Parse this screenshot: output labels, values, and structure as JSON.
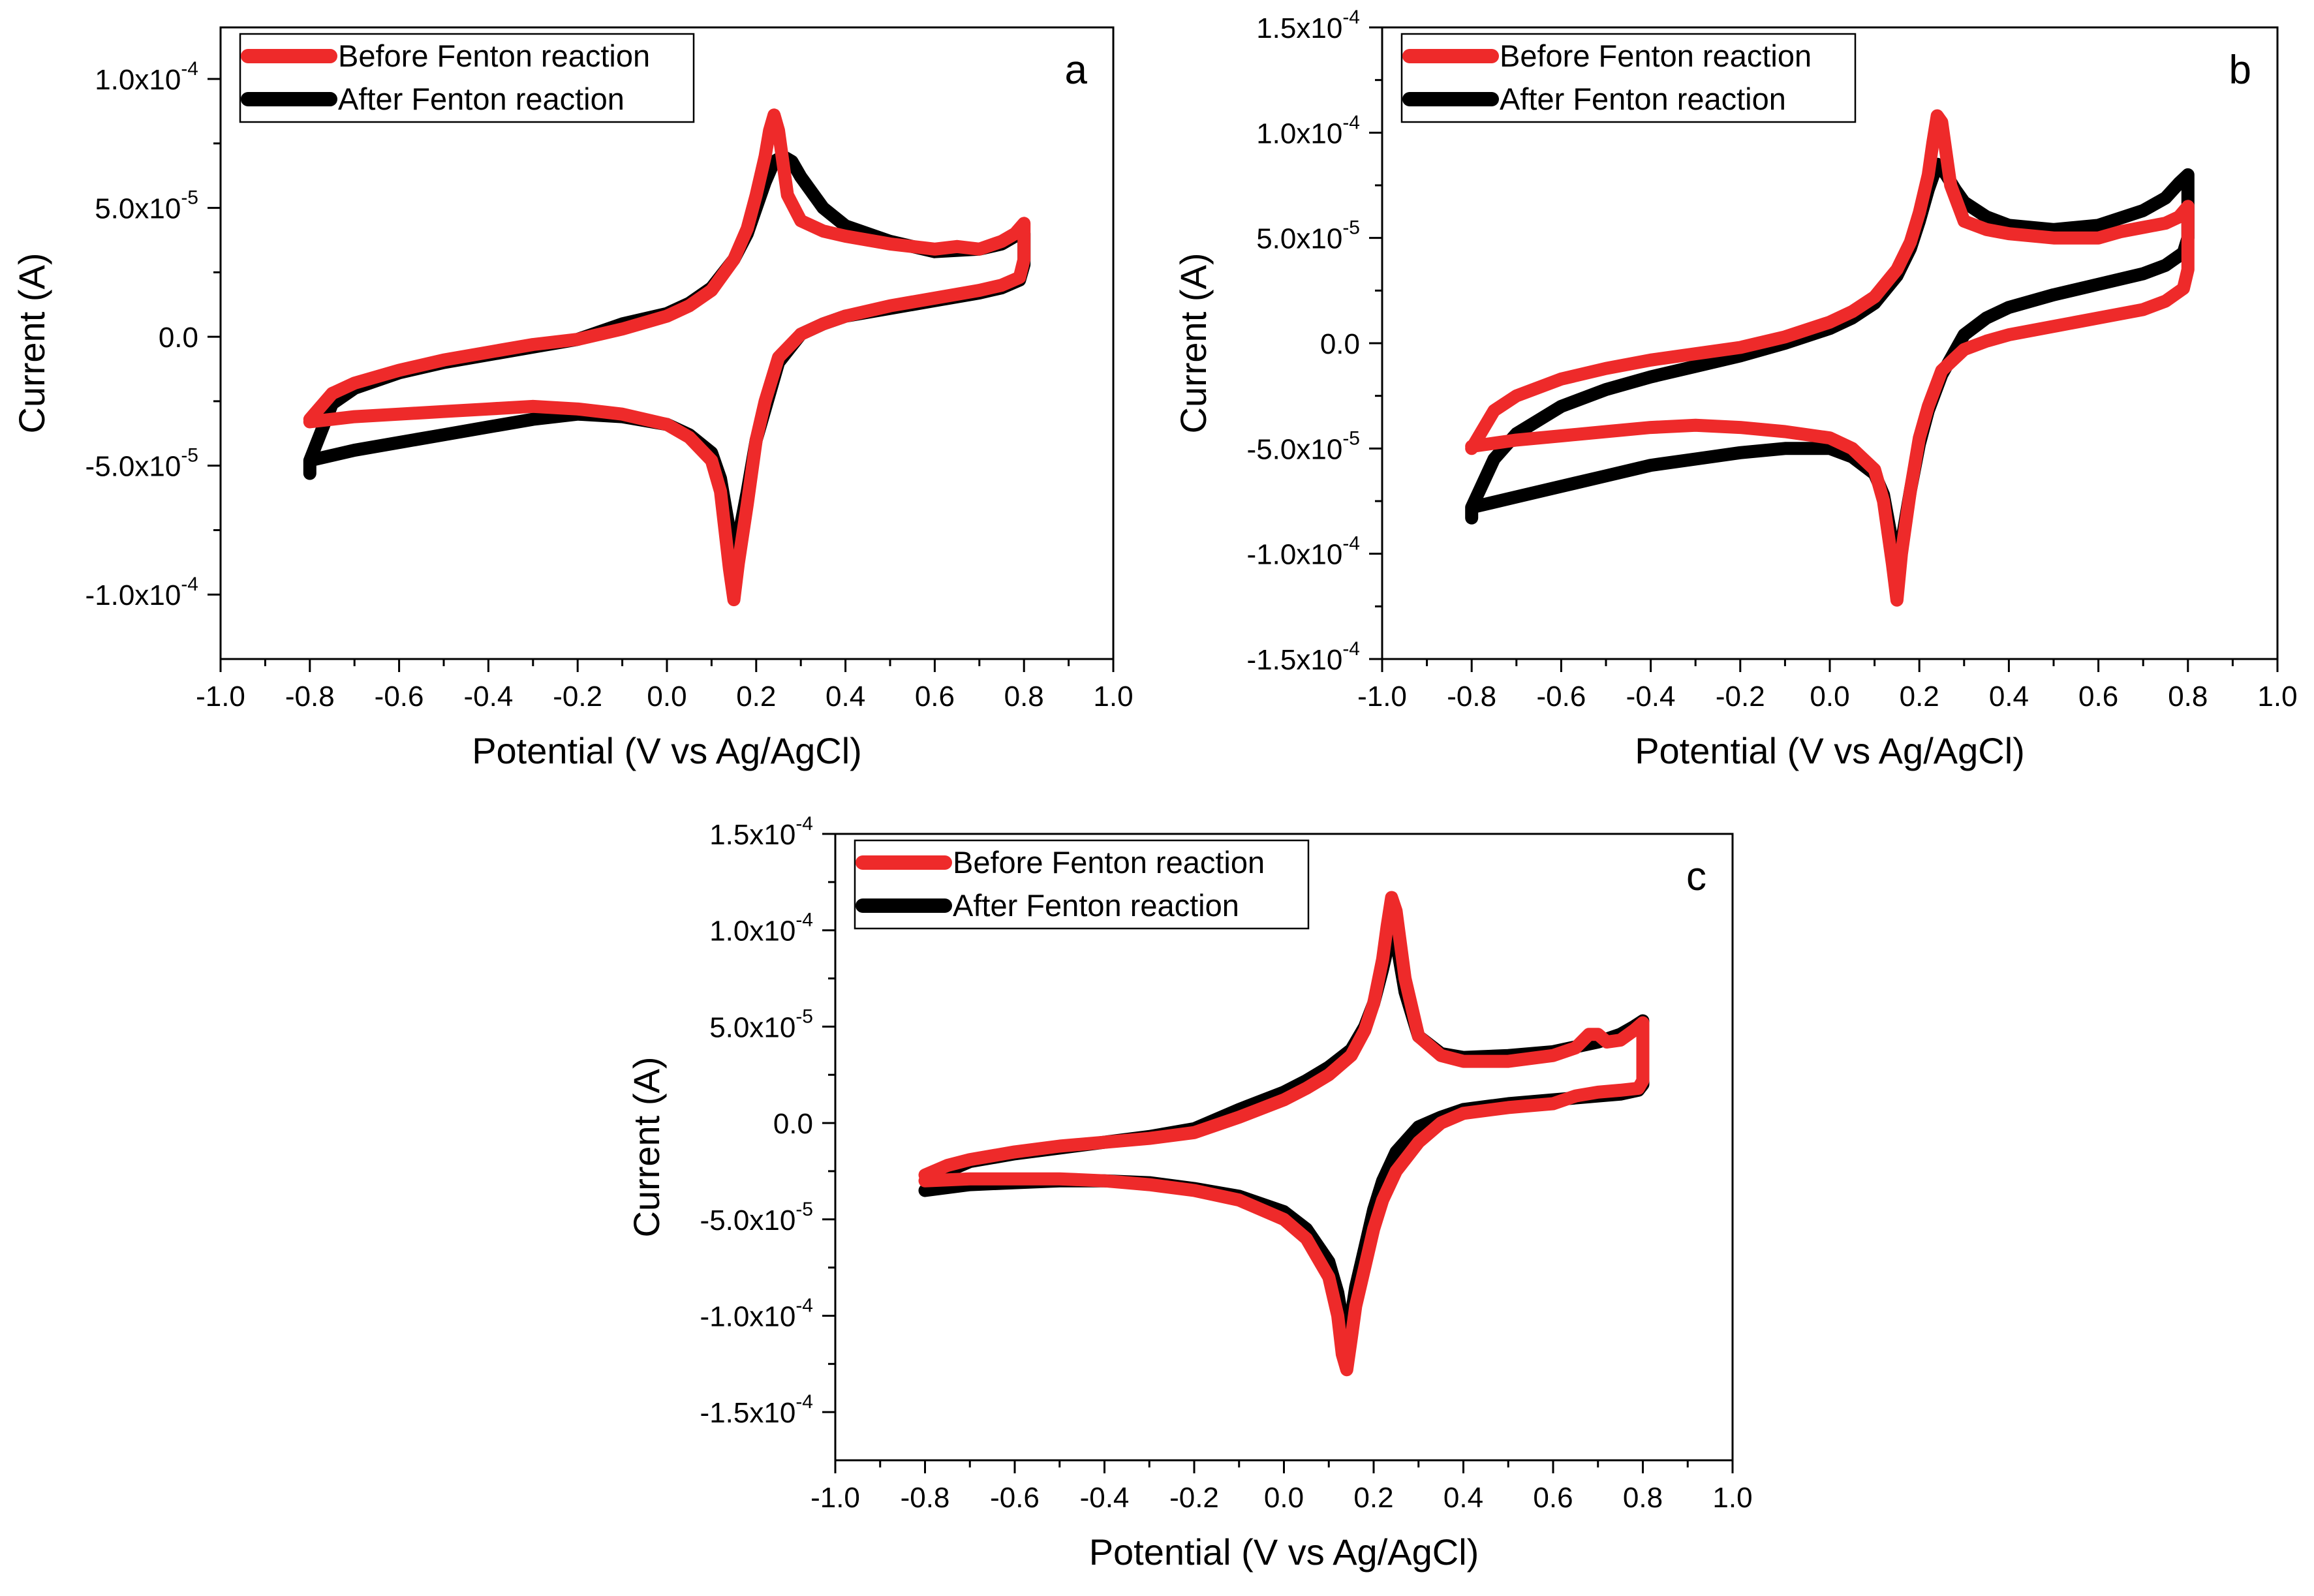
{
  "colors": {
    "before": "#ee2a2a",
    "after": "#000000"
  },
  "chart_data": [
    {
      "type": "line",
      "panel_label": "a",
      "xlabel": "Potential (V vs Ag/AgCl)",
      "ylabel": "Current (A)",
      "xlim": [
        -1.0,
        1.0
      ],
      "ylim": [
        -0.000125,
        0.00012
      ],
      "xticks": [
        -1.0,
        -0.8,
        -0.6,
        -0.4,
        -0.2,
        0.0,
        0.2,
        0.4,
        0.6,
        0.8,
        1.0
      ],
      "xtick_labels": [
        "-1.0",
        "-0.8",
        "-0.6",
        "-0.4",
        "-0.2",
        "0.0",
        "0.2",
        "0.4",
        "0.6",
        "0.8",
        "1.0"
      ],
      "yticks": [
        -0.0001,
        -5e-05,
        0.0,
        5e-05,
        0.0001
      ],
      "ytick_labels": [
        {
          "base": "-1.0x10",
          "exp": "-4"
        },
        {
          "base": "-5.0x10",
          "exp": "-5"
        },
        {
          "base": "0.0",
          "exp": ""
        },
        {
          "base": "5.0x10",
          "exp": "-5"
        },
        {
          "base": "1.0x10",
          "exp": "-4"
        }
      ],
      "legend_position": "top-left",
      "series": [
        {
          "name": "Before Fenton reaction",
          "color": "#ee2a2a",
          "x": [
            -0.8,
            -0.75,
            -0.7,
            -0.6,
            -0.5,
            -0.4,
            -0.3,
            -0.2,
            -0.1,
            0.0,
            0.05,
            0.1,
            0.15,
            0.18,
            0.2,
            0.22,
            0.23,
            0.24,
            0.25,
            0.27,
            0.3,
            0.35,
            0.4,
            0.5,
            0.6,
            0.65,
            0.7,
            0.75,
            0.78,
            0.8,
            0.8,
            0.79,
            0.75,
            0.7,
            0.6,
            0.5,
            0.4,
            0.35,
            0.3,
            0.25,
            0.22,
            0.2,
            0.18,
            0.16,
            0.15,
            0.14,
            0.12,
            0.1,
            0.05,
            0.0,
            -0.1,
            -0.2,
            -0.3,
            -0.4,
            -0.5,
            -0.6,
            -0.7,
            -0.8
          ],
          "y": [
            -3.2e-05,
            -2.2e-05,
            -1.8e-05,
            -1.3e-05,
            -9e-06,
            -6e-06,
            -3e-06,
            -1e-06,
            3e-06,
            8e-06,
            1.2e-05,
            1.8e-05,
            3e-05,
            4.2e-05,
            5.5e-05,
            7e-05,
            8e-05,
            8.6e-05,
            8e-05,
            5.5e-05,
            4.5e-05,
            4.1e-05,
            3.9e-05,
            3.6e-05,
            3.4e-05,
            3.5e-05,
            3.4e-05,
            3.7e-05,
            4e-05,
            4.4e-05,
            3e-05,
            2.3e-05,
            2e-05,
            1.8e-05,
            1.5e-05,
            1.2e-05,
            8e-06,
            5e-06,
            1e-06,
            -8e-06,
            -2.5e-05,
            -4e-05,
            -6.5e-05,
            -8.8e-05,
            -0.000102,
            -9e-05,
            -6e-05,
            -4.8e-05,
            -3.9e-05,
            -3.4e-05,
            -3e-05,
            -2.8e-05,
            -2.7e-05,
            -2.8e-05,
            -2.9e-05,
            -3e-05,
            -3.1e-05,
            -3.3e-05
          ]
        },
        {
          "name": "After Fenton reaction",
          "color": "#000000",
          "x": [
            -0.8,
            -0.75,
            -0.7,
            -0.6,
            -0.5,
            -0.4,
            -0.3,
            -0.2,
            -0.1,
            0.0,
            0.05,
            0.1,
            0.15,
            0.18,
            0.2,
            0.22,
            0.24,
            0.26,
            0.28,
            0.3,
            0.35,
            0.4,
            0.5,
            0.6,
            0.7,
            0.75,
            0.78,
            0.8,
            0.8,
            0.79,
            0.75,
            0.7,
            0.6,
            0.5,
            0.4,
            0.35,
            0.3,
            0.25,
            0.22,
            0.2,
            0.18,
            0.16,
            0.15,
            0.14,
            0.12,
            0.1,
            0.05,
            0.0,
            -0.1,
            -0.2,
            -0.3,
            -0.4,
            -0.5,
            -0.6,
            -0.7,
            -0.8,
            -0.8
          ],
          "y": [
            -4.8e-05,
            -2.6e-05,
            -2e-05,
            -1.4e-05,
            -1e-05,
            -7e-06,
            -4e-06,
            -1e-06,
            5e-06,
            9e-06,
            1.3e-05,
            1.9e-05,
            3e-05,
            4e-05,
            5e-05,
            6e-05,
            6.8e-05,
            7e-05,
            6.8e-05,
            6.2e-05,
            5e-05,
            4.3e-05,
            3.7e-05,
            3.3e-05,
            3.4e-05,
            3.6e-05,
            3.9e-05,
            4e-05,
            2.8e-05,
            2.2e-05,
            1.9e-05,
            1.7e-05,
            1.4e-05,
            1.1e-05,
            8e-06,
            5e-06,
            1e-06,
            -1e-05,
            -2.8e-05,
            -4e-05,
            -6e-05,
            -7.8e-05,
            -8.4e-05,
            -7.5e-05,
            -5.5e-05,
            -4.5e-05,
            -3.8e-05,
            -3.4e-05,
            -3.1e-05,
            -3e-05,
            -3.2e-05,
            -3.5e-05,
            -3.8e-05,
            -4.1e-05,
            -4.4e-05,
            -4.8e-05,
            -5.3e-05
          ]
        }
      ]
    },
    {
      "type": "line",
      "panel_label": "b",
      "xlabel": "Potential (V vs Ag/AgCl)",
      "ylabel": "Current (A)",
      "xlim": [
        -1.0,
        1.0
      ],
      "ylim": [
        -0.00015,
        0.00015
      ],
      "xticks": [
        -1.0,
        -0.8,
        -0.6,
        -0.4,
        -0.2,
        0.0,
        0.2,
        0.4,
        0.6,
        0.8,
        1.0
      ],
      "xtick_labels": [
        "-1.0",
        "-0.8",
        "-0.6",
        "-0.4",
        "-0.2",
        "0.0",
        "0.2",
        "0.4",
        "0.6",
        "0.8",
        "1.0"
      ],
      "yticks": [
        -0.00015,
        -0.0001,
        -5e-05,
        0.0,
        5e-05,
        0.0001,
        0.00015
      ],
      "ytick_labels": [
        {
          "base": "-1.5x10",
          "exp": "-4"
        },
        {
          "base": "-1.0x10",
          "exp": "-4"
        },
        {
          "base": "-5.0x10",
          "exp": "-5"
        },
        {
          "base": "0.0",
          "exp": ""
        },
        {
          "base": "5.0x10",
          "exp": "-5"
        },
        {
          "base": "1.0x10",
          "exp": "-4"
        },
        {
          "base": "1.5x10",
          "exp": "-4"
        }
      ],
      "legend_position": "top-left",
      "series": [
        {
          "name": "Before Fenton reaction",
          "color": "#ee2a2a",
          "x": [
            -0.8,
            -0.75,
            -0.7,
            -0.6,
            -0.5,
            -0.4,
            -0.3,
            -0.2,
            -0.1,
            0.0,
            0.05,
            0.1,
            0.15,
            0.18,
            0.2,
            0.22,
            0.23,
            0.24,
            0.25,
            0.27,
            0.3,
            0.35,
            0.4,
            0.5,
            0.6,
            0.65,
            0.7,
            0.75,
            0.78,
            0.8,
            0.8,
            0.79,
            0.75,
            0.7,
            0.6,
            0.5,
            0.4,
            0.35,
            0.3,
            0.25,
            0.22,
            0.2,
            0.18,
            0.16,
            0.15,
            0.14,
            0.12,
            0.1,
            0.05,
            0.0,
            -0.1,
            -0.2,
            -0.3,
            -0.4,
            -0.5,
            -0.6,
            -0.7,
            -0.8
          ],
          "y": [
            -5e-05,
            -3.2e-05,
            -2.5e-05,
            -1.7e-05,
            -1.2e-05,
            -8e-06,
            -5e-06,
            -2e-06,
            3e-06,
            1e-05,
            1.5e-05,
            2.2e-05,
            3.5e-05,
            4.8e-05,
            6.2e-05,
            8e-05,
            9.5e-05,
            0.000108,
            0.000105,
            7.5e-05,
            5.8e-05,
            5.4e-05,
            5.2e-05,
            5e-05,
            5e-05,
            5.3e-05,
            5.5e-05,
            5.7e-05,
            6e-05,
            6.5e-05,
            3.5e-05,
            2.6e-05,
            2e-05,
            1.6e-05,
            1.2e-05,
            8e-06,
            4e-06,
            1e-06,
            -3e-06,
            -1.3e-05,
            -3e-05,
            -4.5e-05,
            -7e-05,
            -0.0001,
            -0.000122,
            -0.000105,
            -7.5e-05,
            -6e-05,
            -5e-05,
            -4.5e-05,
            -4.2e-05,
            -4e-05,
            -3.9e-05,
            -4e-05,
            -4.2e-05,
            -4.4e-05,
            -4.6e-05,
            -4.9e-05
          ]
        },
        {
          "name": "After Fenton reaction",
          "color": "#000000",
          "x": [
            -0.8,
            -0.75,
            -0.7,
            -0.6,
            -0.5,
            -0.4,
            -0.3,
            -0.2,
            -0.1,
            0.0,
            0.05,
            0.1,
            0.15,
            0.18,
            0.2,
            0.22,
            0.24,
            0.26,
            0.28,
            0.3,
            0.35,
            0.4,
            0.5,
            0.6,
            0.7,
            0.75,
            0.78,
            0.8,
            0.8,
            0.79,
            0.75,
            0.7,
            0.6,
            0.5,
            0.4,
            0.35,
            0.3,
            0.25,
            0.22,
            0.2,
            0.18,
            0.16,
            0.15,
            0.14,
            0.12,
            0.1,
            0.05,
            0.0,
            -0.1,
            -0.2,
            -0.3,
            -0.4,
            -0.5,
            -0.6,
            -0.7,
            -0.8,
            -0.8
          ],
          "y": [
            -7.8e-05,
            -5.5e-05,
            -4.3e-05,
            -3e-05,
            -2.2e-05,
            -1.6e-05,
            -1.1e-05,
            -6e-06,
            0,
            7e-06,
            1.2e-05,
            1.9e-05,
            3.2e-05,
            4.5e-05,
            5.8e-05,
            7.3e-05,
            8.5e-05,
            8e-05,
            7.3e-05,
            6.7e-05,
            6e-05,
            5.6e-05,
            5.4e-05,
            5.6e-05,
            6.3e-05,
            6.9e-05,
            7.6e-05,
            8e-05,
            5e-05,
            4.3e-05,
            3.7e-05,
            3.3e-05,
            2.8e-05,
            2.3e-05,
            1.7e-05,
            1.2e-05,
            4e-06,
            -1.5e-05,
            -3.2e-05,
            -4.8e-05,
            -7e-05,
            -9.5e-05,
            -0.000105,
            -9.5e-05,
            -7.2e-05,
            -6.2e-05,
            -5.4e-05,
            -5e-05,
            -5e-05,
            -5.2e-05,
            -5.5e-05,
            -5.8e-05,
            -6.3e-05,
            -6.8e-05,
            -7.3e-05,
            -7.8e-05,
            -8.3e-05
          ]
        }
      ]
    },
    {
      "type": "line",
      "panel_label": "c",
      "xlabel": "Potential (V vs Ag/AgCl)",
      "ylabel": "Current (A)",
      "xlim": [
        -1.0,
        1.0
      ],
      "ylim": [
        -0.000175,
        0.00015
      ],
      "xticks": [
        -1.0,
        -0.8,
        -0.6,
        -0.4,
        -0.2,
        0.0,
        0.2,
        0.4,
        0.6,
        0.8,
        1.0
      ],
      "xtick_labels": [
        "-1.0",
        "-0.8",
        "-0.6",
        "-0.4",
        "-0.2",
        "0.0",
        "0.2",
        "0.4",
        "0.6",
        "0.8",
        "1.0"
      ],
      "yticks": [
        -0.00015,
        -0.0001,
        -5e-05,
        0.0,
        5e-05,
        0.0001,
        0.00015
      ],
      "ytick_labels": [
        {
          "base": "-1.5x10",
          "exp": "-4"
        },
        {
          "base": "-1.0x10",
          "exp": "-4"
        },
        {
          "base": "-5.0x10",
          "exp": "-5"
        },
        {
          "base": "0.0",
          "exp": ""
        },
        {
          "base": "5.0x10",
          "exp": "-5"
        },
        {
          "base": "1.0x10",
          "exp": "-4"
        },
        {
          "base": "1.5x10",
          "exp": "-4"
        }
      ],
      "legend_position": "top-left",
      "series": [
        {
          "name": "Before Fenton reaction",
          "color": "#ee2a2a",
          "x": [
            -0.8,
            -0.75,
            -0.7,
            -0.6,
            -0.5,
            -0.4,
            -0.3,
            -0.2,
            -0.1,
            0.0,
            0.05,
            0.1,
            0.15,
            0.18,
            0.2,
            0.22,
            0.23,
            0.24,
            0.25,
            0.27,
            0.3,
            0.35,
            0.4,
            0.5,
            0.6,
            0.65,
            0.68,
            0.7,
            0.72,
            0.75,
            0.78,
            0.8,
            0.8,
            0.79,
            0.75,
            0.7,
            0.65,
            0.6,
            0.5,
            0.4,
            0.35,
            0.3,
            0.25,
            0.22,
            0.2,
            0.18,
            0.16,
            0.15,
            0.14,
            0.13,
            0.12,
            0.1,
            0.05,
            0.0,
            -0.1,
            -0.2,
            -0.3,
            -0.4,
            -0.5,
            -0.6,
            -0.7,
            -0.8
          ],
          "y": [
            -2.7e-05,
            -2.2e-05,
            -1.9e-05,
            -1.5e-05,
            -1.2e-05,
            -1e-05,
            -8e-06,
            -5e-06,
            3e-06,
            1.2e-05,
            1.8e-05,
            2.5e-05,
            3.5e-05,
            4.8e-05,
            6.2e-05,
            8.5e-05,
            0.000102,
            0.000117,
            0.00011,
            7.5e-05,
            4.5e-05,
            3.5e-05,
            3.2e-05,
            3.2e-05,
            3.5e-05,
            3.9e-05,
            4.6e-05,
            4.6e-05,
            4.2e-05,
            4.3e-05,
            4.8e-05,
            5.2e-05,
            2.2e-05,
            1.8e-05,
            1.7e-05,
            1.6e-05,
            1.4e-05,
            1e-05,
            8e-06,
            5e-06,
            0,
            -1e-05,
            -2.5e-05,
            -4e-05,
            -5.5e-05,
            -7.5e-05,
            -9.5e-05,
            -0.000112,
            -0.000128,
            -0.00012,
            -0.0001,
            -8e-05,
            -6e-05,
            -5e-05,
            -4e-05,
            -3.5e-05,
            -3.2e-05,
            -3e-05,
            -2.9e-05,
            -2.9e-05,
            -2.9e-05,
            -3e-05
          ]
        },
        {
          "name": "After Fenton reaction",
          "color": "#000000",
          "x": [
            -0.8,
            -0.75,
            -0.7,
            -0.6,
            -0.5,
            -0.4,
            -0.3,
            -0.2,
            -0.1,
            0.0,
            0.05,
            0.1,
            0.15,
            0.18,
            0.2,
            0.22,
            0.23,
            0.24,
            0.25,
            0.27,
            0.3,
            0.35,
            0.4,
            0.5,
            0.6,
            0.7,
            0.75,
            0.78,
            0.8,
            0.8,
            0.79,
            0.75,
            0.7,
            0.6,
            0.5,
            0.4,
            0.35,
            0.3,
            0.25,
            0.22,
            0.2,
            0.18,
            0.16,
            0.15,
            0.14,
            0.13,
            0.12,
            0.1,
            0.05,
            0.0,
            -0.1,
            -0.2,
            -0.3,
            -0.4,
            -0.5,
            -0.6,
            -0.7,
            -0.8
          ],
          "y": [
            -3.5e-05,
            -2.5e-05,
            -2e-05,
            -1.6e-05,
            -1.3e-05,
            -1e-05,
            -7e-06,
            -3e-06,
            7e-06,
            1.6e-05,
            2.2e-05,
            2.9e-05,
            3.8e-05,
            5e-05,
            6.2e-05,
            8e-05,
            9e-05,
            0.0001,
            9.5e-05,
            6.8e-05,
            4.5e-05,
            3.6e-05,
            3.4e-05,
            3.5e-05,
            3.7e-05,
            4.2e-05,
            4.6e-05,
            5e-05,
            5.3e-05,
            2e-05,
            1.7e-05,
            1.5e-05,
            1.4e-05,
            1.2e-05,
            1e-05,
            7e-06,
            3e-06,
            -2e-06,
            -1.5e-05,
            -3e-05,
            -4.5e-05,
            -6.5e-05,
            -8.5e-05,
            -0.0001,
            -0.000108,
            -0.000102,
            -8.8e-05,
            -7.2e-05,
            -5.5e-05,
            -4.6e-05,
            -3.8e-05,
            -3.4e-05,
            -3.1e-05,
            -3e-05,
            -3e-05,
            -3.1e-05,
            -3.2e-05,
            -3.5e-05
          ]
        }
      ]
    }
  ]
}
